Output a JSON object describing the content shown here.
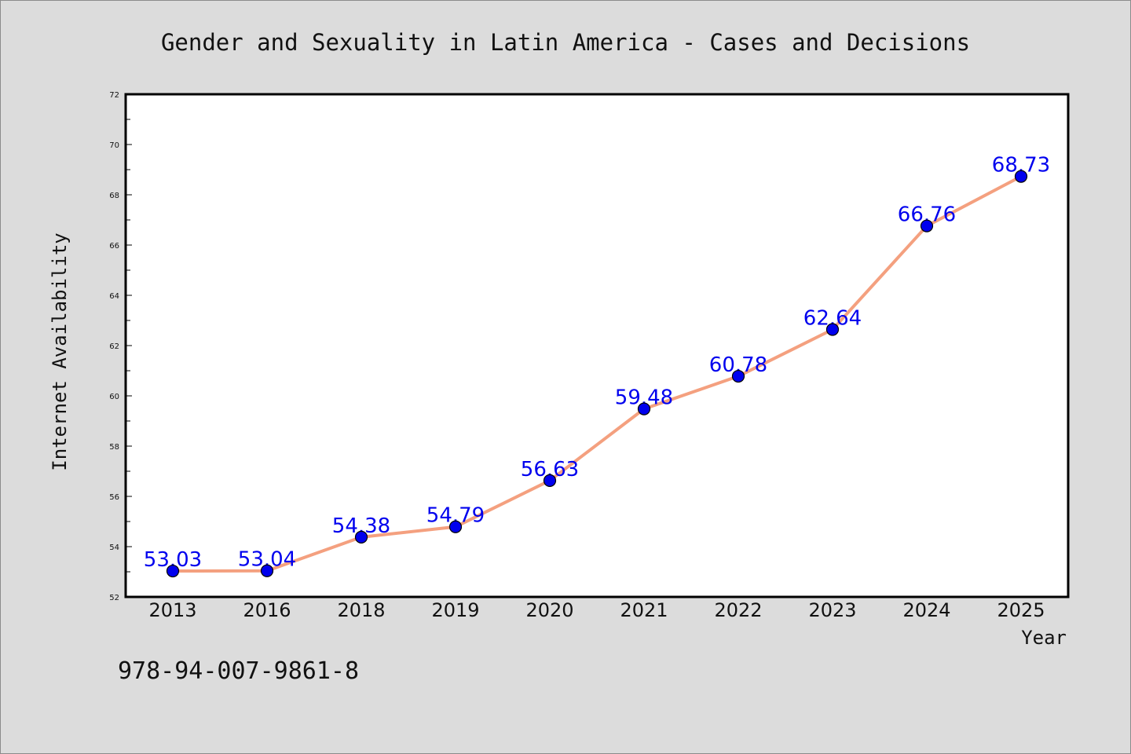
{
  "footer_text": "978-94-007-9861-8",
  "colors": {
    "background": "#dcdcdc",
    "plot_background": "#ffffff",
    "line": "#f4a07f",
    "marker": "#0000ee",
    "data_label": "#0000ee"
  },
  "chart_data": {
    "type": "line",
    "title": "Gender and Sexuality in Latin America - Cases and Decisions",
    "xlabel": "Year",
    "ylabel": "Internet Availability",
    "categories": [
      "2013",
      "2016",
      "2018",
      "2019",
      "2020",
      "2021",
      "2022",
      "2023",
      "2024",
      "2025"
    ],
    "series": [
      {
        "values": [
          53.03,
          53.04,
          54.38,
          54.79,
          56.63,
          59.48,
          60.78,
          62.64,
          66.76,
          68.73
        ]
      }
    ],
    "data_labels": [
      "53.03",
      "53.04",
      "54.38",
      "54.79",
      "56.63",
      "59.48",
      "60.78",
      "62.64",
      "66.76",
      "68.73"
    ],
    "ylim": [
      52,
      72
    ],
    "yticks": [
      52,
      54,
      56,
      58,
      60,
      62,
      64,
      66,
      68,
      70,
      72
    ],
    "grid": false,
    "marker": "circle"
  }
}
